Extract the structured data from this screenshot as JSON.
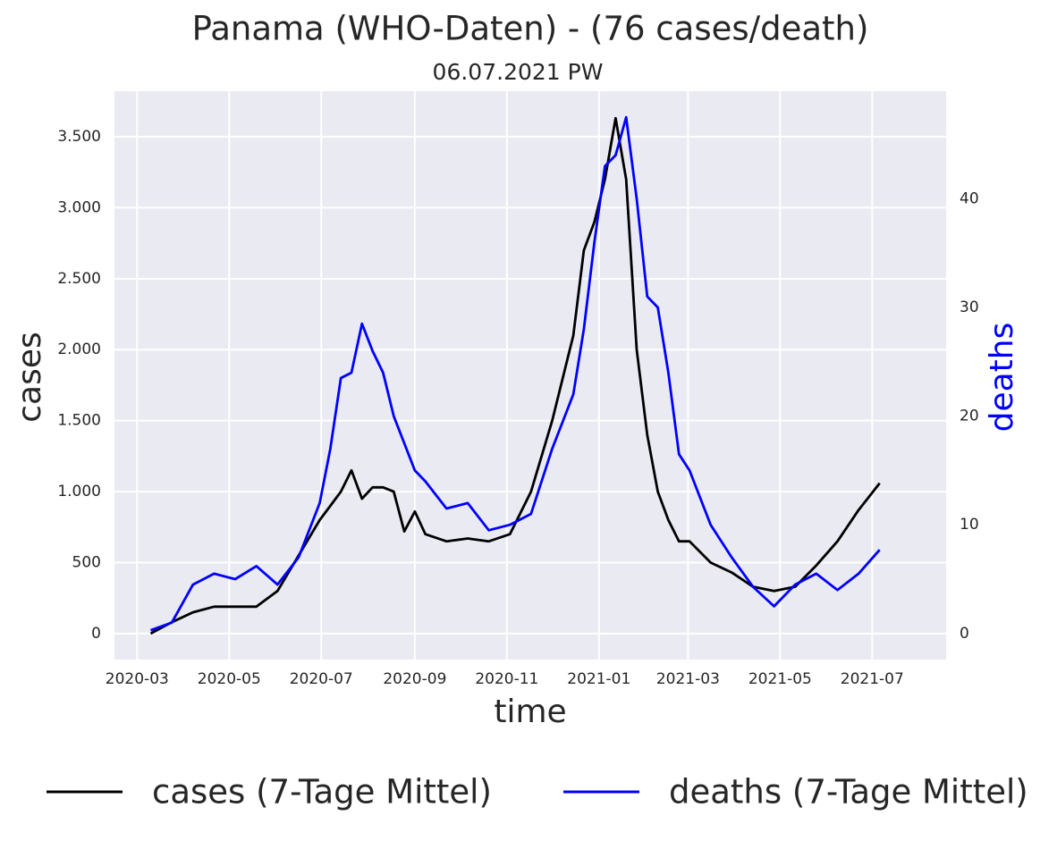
{
  "chart_data": {
    "type": "line",
    "title": "Panama (WHO-Daten) - (76 cases/death)",
    "subtitle": "06.07.2021 PW",
    "x_label": "time",
    "y_label": "cases",
    "y2_label": "deaths",
    "x": [
      "2020-03-10",
      "2020-03-24",
      "2020-04-07",
      "2020-04-21",
      "2020-05-05",
      "2020-05-19",
      "2020-06-02",
      "2020-06-16",
      "2020-06-30",
      "2020-07-07",
      "2020-07-14",
      "2020-07-21",
      "2020-07-28",
      "2020-08-04",
      "2020-08-11",
      "2020-08-18",
      "2020-08-25",
      "2020-09-01",
      "2020-09-08",
      "2020-09-22",
      "2020-10-06",
      "2020-10-20",
      "2020-11-03",
      "2020-11-17",
      "2020-12-01",
      "2020-12-15",
      "2020-12-22",
      "2020-12-29",
      "2021-01-05",
      "2021-01-12",
      "2021-01-19",
      "2021-01-26",
      "2021-02-02",
      "2021-02-09",
      "2021-02-16",
      "2021-02-23",
      "2021-03-02",
      "2021-03-16",
      "2021-03-30",
      "2021-04-13",
      "2021-04-27",
      "2021-05-11",
      "2021-05-25",
      "2021-06-08",
      "2021-06-22",
      "2021-07-06"
    ],
    "series": [
      {
        "name": "cases (7-Tage Mittel)",
        "color": "#000000",
        "values": [
          0,
          80,
          150,
          190,
          190,
          190,
          300,
          550,
          800,
          900,
          1000,
          1150,
          950,
          1030,
          1030,
          1000,
          720,
          860,
          700,
          650,
          670,
          650,
          700,
          1000,
          1500,
          2100,
          2700,
          2900,
          3200,
          3630,
          3200,
          2000,
          1400,
          1000,
          800,
          650,
          650,
          500,
          430,
          330,
          300,
          330,
          480,
          650,
          870,
          1060
        ]
      },
      {
        "name": "deaths (7-Tage Mittel)",
        "color": "#0000ff",
        "axis": "y2",
        "values": [
          0.3,
          1,
          4.5,
          5.5,
          5,
          6.2,
          4.5,
          7,
          12,
          17,
          23.5,
          24,
          28.5,
          26,
          24,
          20,
          17.5,
          15,
          14,
          11.5,
          12,
          9.5,
          10,
          11,
          17,
          22,
          28,
          36,
          43,
          44,
          47.5,
          40,
          31,
          30,
          24,
          16.5,
          15,
          10,
          7,
          4.3,
          2.5,
          4.5,
          5.5,
          4,
          5.5,
          7.7
        ]
      }
    ],
    "xlim": [
      "2020-02-15",
      "2021-08-19"
    ],
    "xticks": [
      "2020-03",
      "2020-05",
      "2020-07",
      "2020-09",
      "2020-11",
      "2021-01",
      "2021-03",
      "2021-05",
      "2021-07"
    ],
    "ylim": [
      -183,
      3821
    ],
    "yticks": [
      0,
      500,
      {
        "value": 1000,
        "label": "1.000"
      },
      {
        "value": 1500,
        "label": "1.500"
      },
      {
        "value": 2000,
        "label": "2.000"
      },
      {
        "value": 2500,
        "label": "2.500"
      },
      {
        "value": 3000,
        "label": "3.000"
      },
      {
        "value": 3500,
        "label": "3.500"
      }
    ],
    "y2lim": [
      -2.4,
      49.9
    ],
    "y2ticks": [
      0,
      10,
      20,
      30,
      40
    ],
    "grid": true,
    "legend": "bottom"
  }
}
